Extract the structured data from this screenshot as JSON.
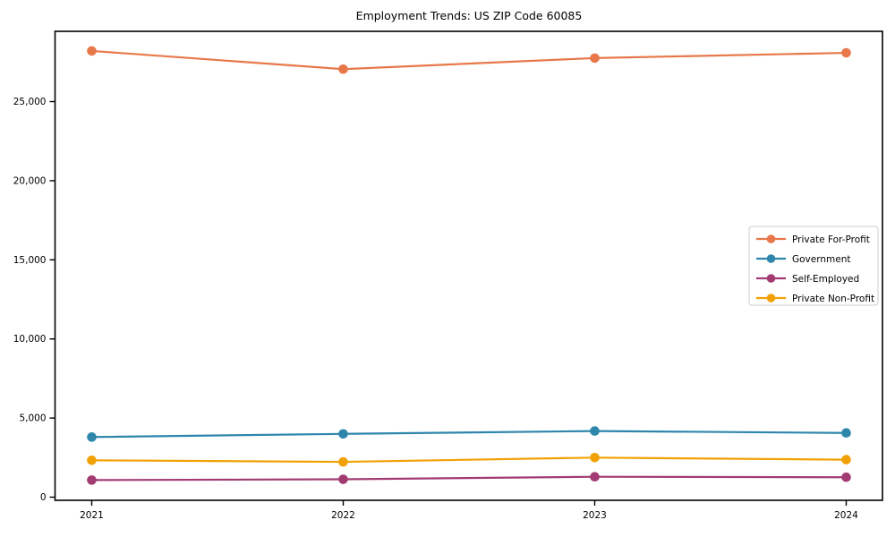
{
  "chart_data": {
    "type": "line",
    "title": "Employment Trends: US ZIP Code 60085",
    "xlabel": "",
    "ylabel": "",
    "categories": [
      "2021",
      "2022",
      "2023",
      "2024"
    ],
    "series": [
      {
        "name": "Private For-Profit",
        "color": "#E8784A",
        "values": [
          28200,
          27050,
          27750,
          28080
        ]
      },
      {
        "name": "Government",
        "color": "#2E86AB",
        "values": [
          3800,
          4000,
          4180,
          4060
        ]
      },
      {
        "name": "Self-Employed",
        "color": "#A23B72",
        "values": [
          1080,
          1130,
          1290,
          1260
        ]
      },
      {
        "name": "Private Non-Profit",
        "color": "#F2A104",
        "values": [
          2330,
          2230,
          2500,
          2370
        ]
      }
    ],
    "ylim": [
      0,
      29500
    ],
    "yticks": [
      0,
      5000,
      10000,
      15000,
      20000,
      25000
    ],
    "ytick_labels": [
      "0",
      "5,000",
      "10,000",
      "15,000",
      "20,000",
      "25,000"
    ],
    "grid": false,
    "marker": "circle",
    "legend": {
      "position": "center-right",
      "border": true,
      "entries": [
        "Private For-Profit",
        "Government",
        "Self-Employed",
        "Private Non-Profit"
      ]
    },
    "frame_color": "#000000",
    "legend_border_color": "#cccccc"
  }
}
